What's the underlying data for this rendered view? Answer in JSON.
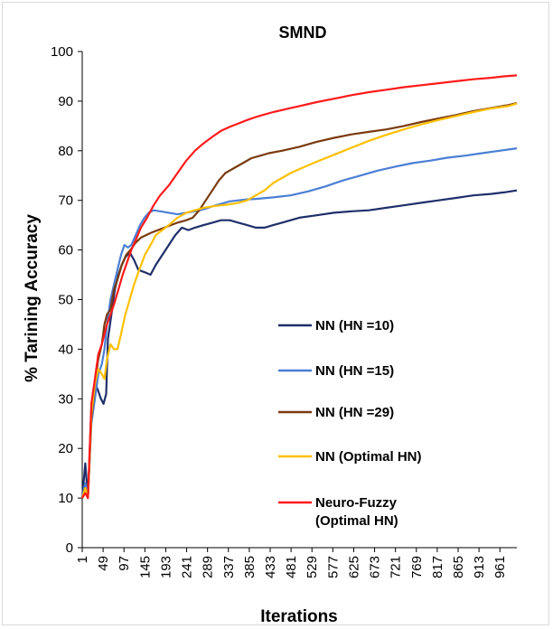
{
  "chart_data": {
    "type": "line",
    "title": "SMND",
    "xlabel": "Iterations",
    "ylabel": "% Tarining Accuracy",
    "ylim": [
      0,
      100
    ],
    "xlim": [
      1,
      1000
    ],
    "yticks": [
      0,
      10,
      20,
      30,
      40,
      50,
      60,
      70,
      80,
      90,
      100
    ],
    "xticks": [
      "1",
      "49",
      "97",
      "145",
      "193",
      "241",
      "289",
      "337",
      "385",
      "433",
      "481",
      "529",
      "577",
      "625",
      "673",
      "721",
      "769",
      "817",
      "865",
      "913",
      "961"
    ],
    "grid": false,
    "legend_position": "bottom-right",
    "series": [
      {
        "name": "NN (HN =10)",
        "color": "#1f2f6b",
        "points": [
          [
            1,
            10
          ],
          [
            8,
            17
          ],
          [
            14,
            10
          ],
          [
            22,
            28
          ],
          [
            30,
            33
          ],
          [
            36,
            32
          ],
          [
            44,
            30
          ],
          [
            50,
            29
          ],
          [
            56,
            31
          ],
          [
            60,
            42
          ],
          [
            68,
            47
          ],
          [
            76,
            52
          ],
          [
            84,
            55
          ],
          [
            92,
            57
          ],
          [
            100,
            58.5
          ],
          [
            110,
            59.5
          ],
          [
            120,
            58
          ],
          [
            130,
            56
          ],
          [
            145,
            55.5
          ],
          [
            158,
            55
          ],
          [
            170,
            57
          ],
          [
            185,
            59
          ],
          [
            200,
            61
          ],
          [
            215,
            63
          ],
          [
            230,
            64.5
          ],
          [
            245,
            64
          ],
          [
            260,
            64.5
          ],
          [
            280,
            65
          ],
          [
            300,
            65.5
          ],
          [
            320,
            66
          ],
          [
            340,
            66
          ],
          [
            360,
            65.5
          ],
          [
            380,
            65
          ],
          [
            400,
            64.5
          ],
          [
            420,
            64.5
          ],
          [
            440,
            65
          ],
          [
            460,
            65.5
          ],
          [
            480,
            66
          ],
          [
            500,
            66.5
          ],
          [
            540,
            67
          ],
          [
            580,
            67.5
          ],
          [
            620,
            67.8
          ],
          [
            660,
            68
          ],
          [
            700,
            68.5
          ],
          [
            740,
            69
          ],
          [
            780,
            69.5
          ],
          [
            820,
            70
          ],
          [
            860,
            70.5
          ],
          [
            900,
            71
          ],
          [
            940,
            71.3
          ],
          [
            970,
            71.6
          ],
          [
            1000,
            72
          ]
        ]
      },
      {
        "name": "NN (HN =15)",
        "color": "#4a7fd4",
        "points": [
          [
            1,
            10
          ],
          [
            8,
            13
          ],
          [
            14,
            10
          ],
          [
            22,
            25
          ],
          [
            30,
            30
          ],
          [
            38,
            35
          ],
          [
            46,
            37
          ],
          [
            52,
            40
          ],
          [
            58,
            45
          ],
          [
            66,
            50
          ],
          [
            74,
            53
          ],
          [
            82,
            56
          ],
          [
            90,
            59
          ],
          [
            98,
            61
          ],
          [
            106,
            60.5
          ],
          [
            114,
            61
          ],
          [
            124,
            63
          ],
          [
            134,
            65
          ],
          [
            144,
            66.5
          ],
          [
            154,
            67.5
          ],
          [
            165,
            68
          ],
          [
            180,
            67.8
          ],
          [
            200,
            67.5
          ],
          [
            220,
            67.2
          ],
          [
            240,
            67.5
          ],
          [
            260,
            67.8
          ],
          [
            280,
            68.2
          ],
          [
            300,
            68.8
          ],
          [
            320,
            69.3
          ],
          [
            340,
            69.8
          ],
          [
            360,
            70
          ],
          [
            380,
            70.2
          ],
          [
            400,
            70.3
          ],
          [
            440,
            70.6
          ],
          [
            480,
            71
          ],
          [
            520,
            71.8
          ],
          [
            560,
            72.8
          ],
          [
            600,
            74
          ],
          [
            640,
            75
          ],
          [
            680,
            76
          ],
          [
            720,
            76.8
          ],
          [
            760,
            77.5
          ],
          [
            800,
            78
          ],
          [
            840,
            78.6
          ],
          [
            880,
            79
          ],
          [
            920,
            79.5
          ],
          [
            960,
            80
          ],
          [
            1000,
            80.5
          ]
        ]
      },
      {
        "name": "NN (HN =29)",
        "color": "#7a3a0e",
        "points": [
          [
            1,
            10
          ],
          [
            8,
            12
          ],
          [
            14,
            10
          ],
          [
            22,
            26
          ],
          [
            30,
            33
          ],
          [
            38,
            38
          ],
          [
            46,
            41
          ],
          [
            52,
            45
          ],
          [
            58,
            47
          ],
          [
            66,
            48
          ],
          [
            74,
            52
          ],
          [
            82,
            54
          ],
          [
            92,
            57
          ],
          [
            102,
            59
          ],
          [
            112,
            60
          ],
          [
            124,
            61.5
          ],
          [
            136,
            62.5
          ],
          [
            148,
            63
          ],
          [
            160,
            63.5
          ],
          [
            175,
            64
          ],
          [
            190,
            64.5
          ],
          [
            205,
            65
          ],
          [
            220,
            65.5
          ],
          [
            240,
            66
          ],
          [
            255,
            66.5
          ],
          [
            270,
            68
          ],
          [
            285,
            70
          ],
          [
            300,
            72
          ],
          [
            315,
            74
          ],
          [
            330,
            75.5
          ],
          [
            350,
            76.5
          ],
          [
            370,
            77.5
          ],
          [
            390,
            78.5
          ],
          [
            410,
            79
          ],
          [
            430,
            79.5
          ],
          [
            460,
            80
          ],
          [
            500,
            80.8
          ],
          [
            540,
            81.8
          ],
          [
            580,
            82.6
          ],
          [
            620,
            83.3
          ],
          [
            660,
            83.8
          ],
          [
            700,
            84.3
          ],
          [
            740,
            85
          ],
          [
            780,
            85.8
          ],
          [
            820,
            86.5
          ],
          [
            860,
            87.2
          ],
          [
            900,
            88
          ],
          [
            940,
            88.6
          ],
          [
            980,
            89.2
          ],
          [
            1000,
            89.6
          ]
        ]
      },
      {
        "name": "NN (Optimal HN)",
        "color": "#ffc000",
        "points": [
          [
            1,
            10
          ],
          [
            8,
            12
          ],
          [
            14,
            10
          ],
          [
            22,
            27
          ],
          [
            30,
            33
          ],
          [
            38,
            36
          ],
          [
            46,
            35
          ],
          [
            52,
            34
          ],
          [
            58,
            38
          ],
          [
            66,
            41
          ],
          [
            74,
            40
          ],
          [
            82,
            40
          ],
          [
            90,
            43
          ],
          [
            100,
            47
          ],
          [
            110,
            50
          ],
          [
            120,
            53
          ],
          [
            132,
            56
          ],
          [
            145,
            59
          ],
          [
            158,
            61
          ],
          [
            170,
            63
          ],
          [
            185,
            64
          ],
          [
            200,
            65
          ],
          [
            220,
            66.5
          ],
          [
            240,
            67.5
          ],
          [
            260,
            68
          ],
          [
            280,
            68.5
          ],
          [
            300,
            68.8
          ],
          [
            320,
            69
          ],
          [
            340,
            69.2
          ],
          [
            360,
            69.5
          ],
          [
            380,
            70
          ],
          [
            400,
            71
          ],
          [
            420,
            72
          ],
          [
            440,
            73.5
          ],
          [
            460,
            74.5
          ],
          [
            480,
            75.5
          ],
          [
            500,
            76.3
          ],
          [
            540,
            77.8
          ],
          [
            580,
            79.2
          ],
          [
            620,
            80.6
          ],
          [
            660,
            82
          ],
          [
            700,
            83.2
          ],
          [
            740,
            84.3
          ],
          [
            780,
            85.3
          ],
          [
            820,
            86.2
          ],
          [
            860,
            87
          ],
          [
            900,
            87.8
          ],
          [
            940,
            88.5
          ],
          [
            980,
            89
          ],
          [
            1000,
            89.5
          ]
        ]
      },
      {
        "name": "Neuro-Fuzzy (Optimal HN)",
        "color": "#ff1a1a",
        "points": [
          [
            1,
            10
          ],
          [
            8,
            11
          ],
          [
            14,
            10
          ],
          [
            22,
            29
          ],
          [
            30,
            34
          ],
          [
            38,
            39
          ],
          [
            46,
            41
          ],
          [
            52,
            43
          ],
          [
            58,
            45
          ],
          [
            66,
            47
          ],
          [
            74,
            49
          ],
          [
            84,
            52
          ],
          [
            94,
            55
          ],
          [
            104,
            57.5
          ],
          [
            114,
            60
          ],
          [
            124,
            62
          ],
          [
            136,
            64.5
          ],
          [
            150,
            66.5
          ],
          [
            165,
            69
          ],
          [
            180,
            71
          ],
          [
            200,
            73
          ],
          [
            220,
            75.5
          ],
          [
            240,
            78
          ],
          [
            260,
            80
          ],
          [
            280,
            81.5
          ],
          [
            300,
            82.8
          ],
          [
            320,
            84
          ],
          [
            340,
            84.8
          ],
          [
            360,
            85.5
          ],
          [
            380,
            86.2
          ],
          [
            400,
            86.8
          ],
          [
            420,
            87.3
          ],
          [
            440,
            87.8
          ],
          [
            460,
            88.2
          ],
          [
            480,
            88.6
          ],
          [
            500,
            89
          ],
          [
            540,
            89.8
          ],
          [
            580,
            90.5
          ],
          [
            620,
            91.2
          ],
          [
            660,
            91.8
          ],
          [
            700,
            92.3
          ],
          [
            740,
            92.8
          ],
          [
            780,
            93.2
          ],
          [
            820,
            93.6
          ],
          [
            860,
            94
          ],
          [
            900,
            94.4
          ],
          [
            940,
            94.7
          ],
          [
            970,
            95
          ],
          [
            1000,
            95.2
          ]
        ]
      }
    ]
  }
}
